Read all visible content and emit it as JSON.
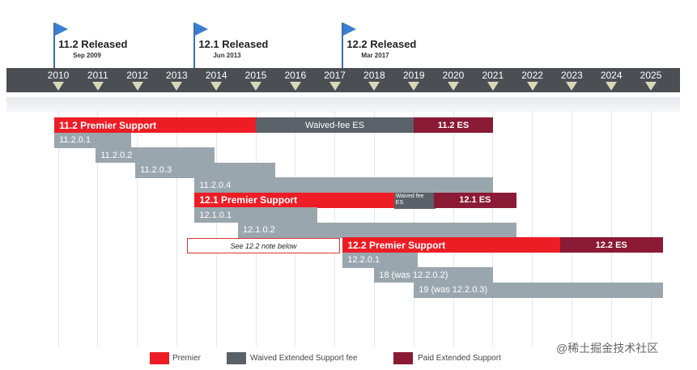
{
  "chart_data": {
    "type": "gantt",
    "years": [
      "2010",
      "2011",
      "2012",
      "2013",
      "2014",
      "2015",
      "2016",
      "2017",
      "2018",
      "2019",
      "2020",
      "2021",
      "2022",
      "2023",
      "2024",
      "2025"
    ],
    "releases": [
      {
        "title": "11.2 Released",
        "date": "Sep 2009",
        "year": 2009.9
      },
      {
        "title": "12.1 Released",
        "date": "Jun 2013",
        "year": 2013.45
      },
      {
        "title": "12.2 Released",
        "date": "Mar 2017",
        "year": 2017.2
      }
    ],
    "bars": [
      {
        "row": 0,
        "start": 2009.9,
        "end": 2015.0,
        "kind": "premier",
        "label": "11.2 Premier Support"
      },
      {
        "row": 0,
        "start": 2015.0,
        "end": 2019.0,
        "kind": "waived",
        "label": "Waived-fee ES"
      },
      {
        "row": 0,
        "start": 2019.0,
        "end": 2021.0,
        "kind": "paid",
        "label": "11.2 ES"
      },
      {
        "row": 1,
        "start": 2009.9,
        "end": 2011.85,
        "kind": "patch",
        "label": "11.2.0.1"
      },
      {
        "row": 2,
        "start": 2010.95,
        "end": 2013.95,
        "kind": "patch",
        "label": "11.2.0.2"
      },
      {
        "row": 3,
        "start": 2011.95,
        "end": 2015.5,
        "kind": "patch",
        "label": "11.2.0.3"
      },
      {
        "row": 4,
        "start": 2013.45,
        "end": 2021.0,
        "kind": "patch",
        "label": "11.2.0.4"
      },
      {
        "row": 5,
        "start": 2013.45,
        "end": 2018.5,
        "kind": "premier",
        "label": "12.1 Premier Support"
      },
      {
        "row": 5,
        "start": 2018.5,
        "end": 2019.5,
        "kind": "waived",
        "label": "Waived fee ES"
      },
      {
        "row": 5,
        "start": 2019.5,
        "end": 2021.6,
        "kind": "paid",
        "label": "12.1 ES"
      },
      {
        "row": 6,
        "start": 2013.45,
        "end": 2016.55,
        "kind": "patch",
        "label": "12.1.0.1"
      },
      {
        "row": 7,
        "start": 2014.55,
        "end": 2021.6,
        "kind": "patch",
        "label": "12.1.0.2"
      },
      {
        "row": 8,
        "start": 2017.2,
        "end": 2022.7,
        "kind": "premier",
        "label": "12.2 Premier Support"
      },
      {
        "row": 8,
        "start": 2022.7,
        "end": 2025.3,
        "kind": "paid",
        "label": "12.2 ES"
      },
      {
        "row": 9,
        "start": 2017.2,
        "end": 2019.1,
        "kind": "patch",
        "label": "12.2.0.1"
      },
      {
        "row": 10,
        "start": 2018.0,
        "end": 2021.0,
        "kind": "patch",
        "label": "18 (was 12.2.0.2)"
      },
      {
        "row": 11,
        "start": 2019.0,
        "end": 2025.3,
        "kind": "patch",
        "label": "19 (was 12.2.0.3)"
      }
    ],
    "note": {
      "row": 8,
      "start": 2013.25,
      "end": 2017.1,
      "label": "See 12.2 note below"
    },
    "legend": [
      {
        "label": "Premier",
        "kind": "premier"
      },
      {
        "label": "Waived Extended Support fee",
        "kind": "waived"
      },
      {
        "label": "Paid Extended Support",
        "kind": "paid"
      }
    ],
    "colors": {
      "premier": "#ee1d25",
      "waived": "#5a6168",
      "paid": "#8a1a35",
      "patch": "#9aa6ae",
      "timeline": "#4b4f54"
    }
  },
  "watermark": "@稀土掘金技术社区"
}
